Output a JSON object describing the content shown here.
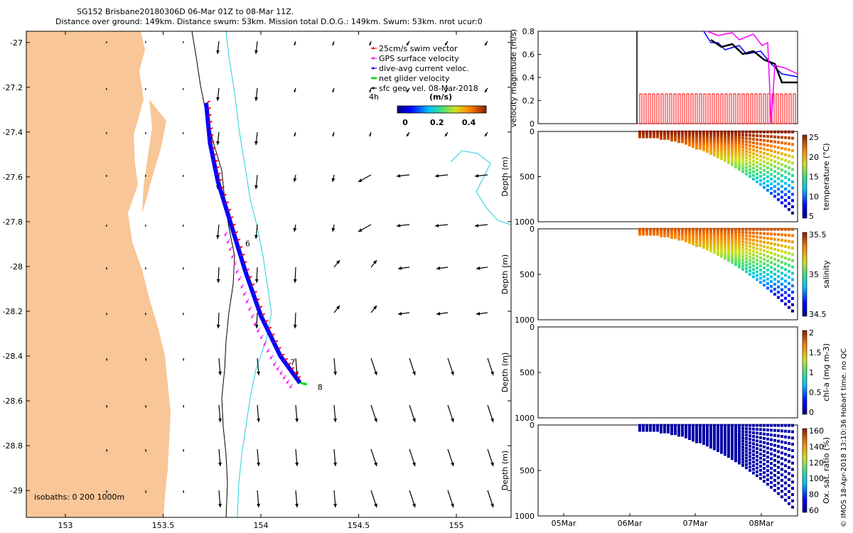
{
  "title_line1": "SG152 Brisbane20180306D 06-Mar 01Z to 08-Mar 11Z.",
  "title_line2": "Distance over ground: 149km. Distance swum: 53km. Mission total D.O.G.: 149km. Swum: 53km. nrot ucur:0",
  "footer": "© IMOS 18-Apr-2018 13:10:36 Hobart time. no QC",
  "colors": {
    "land": "#F8C697",
    "shelf_contour": "#000000",
    "cyan_contour": "#22D0E0",
    "swim": "#FF0000",
    "gps": "#FF00FF",
    "current": "#0000FF",
    "net": "#00DD00"
  },
  "chart_data": [
    {
      "type": "map",
      "xlim": [
        152.8,
        155.28
      ],
      "ylim": [
        -29.12,
        -26.95
      ],
      "xticks": [
        "153",
        "153.5",
        "154",
        "154.5",
        "155"
      ],
      "yticks": [
        "-27",
        "-27.2",
        "-27.4",
        "-27.6",
        "-27.8",
        "-28",
        "-28.2",
        "-28.4",
        "-28.6",
        "-28.8",
        "-29"
      ],
      "isobath_label": "isobaths: 0   200  1000m",
      "legend": [
        "25cm/s swim vector",
        "GPS surface velocity",
        "dive-avg current veloc.",
        "net glider velocity",
        "sfc geo. vel. 08-Mar-2018"
      ],
      "vector_scale_label": "4h",
      "colorbar_title": "(m/s)",
      "colorbar_ticks": [
        "0",
        "0.2",
        "0.4"
      ],
      "day_labels": [
        {
          "label": "6",
          "lon": 153.92,
          "lat": -27.91
        },
        {
          "label": "7",
          "lon": 154.15,
          "lat": -28.44
        },
        {
          "label": "8",
          "lon": 154.29,
          "lat": -28.55
        }
      ],
      "track": [
        [
          153.72,
          -27.27
        ],
        [
          153.74,
          -27.45
        ],
        [
          153.78,
          -27.62
        ],
        [
          153.85,
          -27.82
        ],
        [
          153.92,
          -28.02
        ],
        [
          154.0,
          -28.22
        ],
        [
          154.1,
          -28.4
        ],
        [
          154.2,
          -28.52
        ]
      ]
    },
    {
      "type": "line",
      "ylabel": "velocity magnitude (m/s)",
      "ylim": [
        0,
        0.8
      ],
      "yticks": [
        "0",
        "0.2",
        "0.4",
        "0.6",
        "0.8"
      ]
    },
    {
      "type": "scatter",
      "ylabel": "Depth (m)",
      "ylim": [
        1000,
        0
      ],
      "yticks": [
        "0",
        "500",
        "1000"
      ],
      "colorbar_label": "temperature (°C)",
      "colorbar_ticks": [
        "5",
        "10",
        "15",
        "20",
        "25"
      ]
    },
    {
      "type": "scatter",
      "ylabel": "Depth (m)",
      "ylim": [
        1000,
        0
      ],
      "yticks": [
        "0",
        "500",
        "1000"
      ],
      "colorbar_label": "salinity",
      "colorbar_ticks": [
        "34.5",
        "35",
        "35.5"
      ]
    },
    {
      "type": "scatter",
      "ylabel": "Depth (m)",
      "ylim": [
        1000,
        0
      ],
      "yticks": [
        "0",
        "500",
        "1000"
      ],
      "colorbar_label": "chl-a (mg m-3)",
      "colorbar_ticks": [
        "0",
        "0.5",
        "1",
        "1.5",
        "2"
      ]
    },
    {
      "type": "scatter",
      "ylabel": "Depth (m)",
      "ylim": [
        1000,
        0
      ],
      "yticks": [
        "0",
        "500",
        "1000"
      ],
      "colorbar_label": "Ox. sat. ratio (%)",
      "colorbar_ticks": [
        "60",
        "80",
        "100",
        "120",
        "140",
        "160"
      ],
      "xticks": [
        "05Mar",
        "06Mar",
        "07Mar",
        "08Mar"
      ]
    }
  ]
}
